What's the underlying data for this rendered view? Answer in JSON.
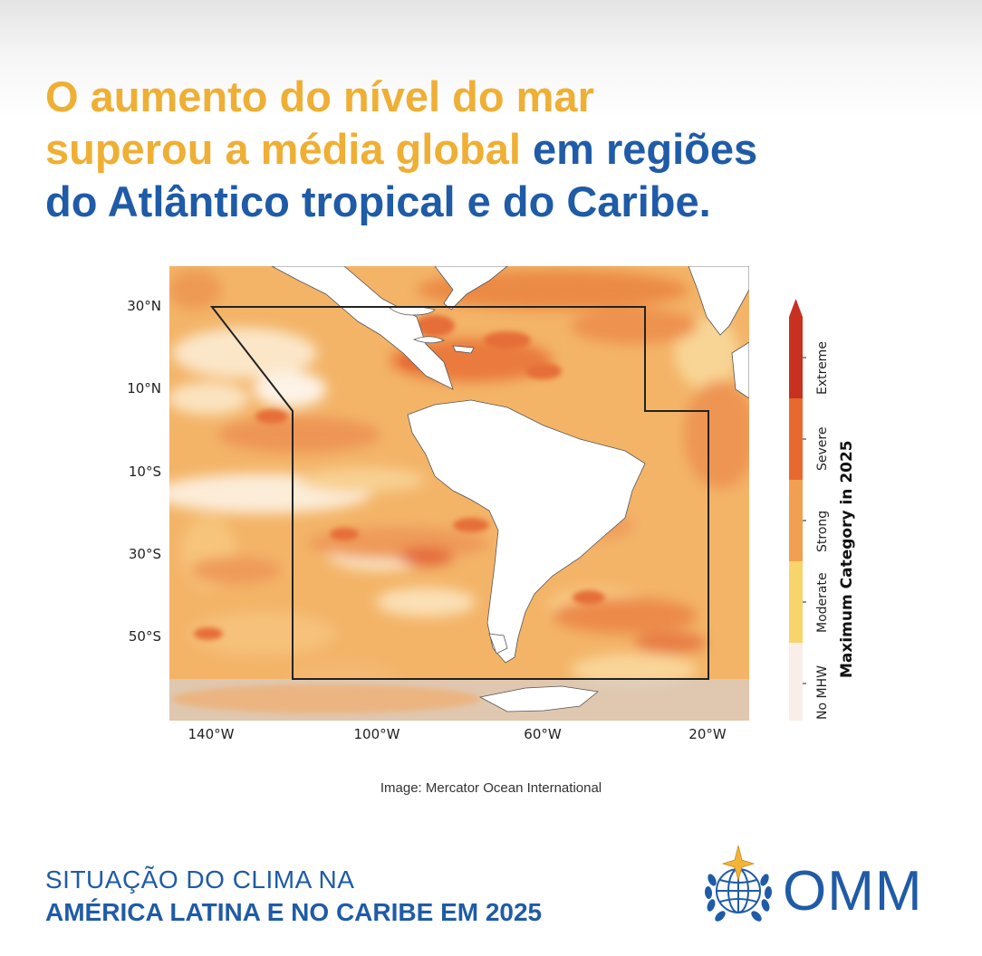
{
  "headline": {
    "line1": "O aumento do nível do mar",
    "line2_orange": "superou a média global ",
    "line2_blue": "em regiões",
    "line3": "do Atlântico tropical e do Caribe."
  },
  "map": {
    "lat_labels": [
      "30°N",
      "10°N",
      "10°S",
      "30°S",
      "50°S"
    ],
    "lon_labels": [
      "140°W",
      "100°W",
      "60°W",
      "20°W"
    ],
    "legend_title": "Maximum Category in 2025",
    "categories": [
      {
        "label": "No MHW",
        "color": "#f9eee8"
      },
      {
        "label": "Moderate",
        "color": "#f7d46c"
      },
      {
        "label": "Strong",
        "color": "#f0a050"
      },
      {
        "label": "Severe",
        "color": "#e8692e"
      },
      {
        "label": "Extreme",
        "color": "#c8311f"
      }
    ]
  },
  "credit": "Image: Mercator Ocean International",
  "footer": {
    "line1": "SITUAÇÃO DO CLIMA NA",
    "line2": "AMÉRICA LATINA E NO CARIBE EM 2025"
  },
  "logo": {
    "text": "OMM"
  },
  "colors": {
    "orange": "#efaf35",
    "blue": "#1f5ba7"
  }
}
